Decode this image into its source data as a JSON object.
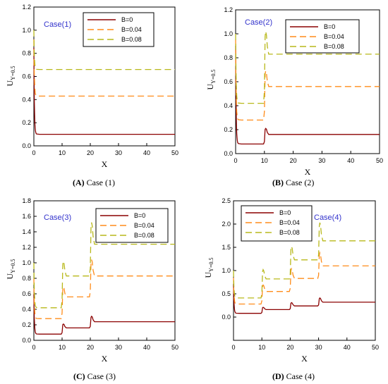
{
  "colors": {
    "B=0": "#8b0000",
    "B=0.04": "#ff8c1a",
    "B=0.08": "#b8b81a",
    "case_label": "#3333cc"
  },
  "panels": [
    {
      "caption_letter": "(A)",
      "caption_text": " Case (1)",
      "case_label": "Case(1)",
      "xlabel": "X",
      "ylabel_main": "U",
      "ylabel_sub": "Y=0.5",
      "legend": [
        "B=0",
        "B=0.04",
        "B=0.08"
      ]
    },
    {
      "caption_letter": "(B)",
      "caption_text": " Case (2)",
      "case_label": "Case(2)",
      "xlabel": "X",
      "ylabel_main": "U",
      "ylabel_sub": "Y=0.5",
      "legend": [
        "B=0",
        "B=0.04",
        "B=0.08"
      ]
    },
    {
      "caption_letter": "(C)",
      "caption_text": " Case (3)",
      "case_label": "Case(3)",
      "xlabel": "X",
      "ylabel_main": "U",
      "ylabel_sub": "Y=0.5",
      "legend": [
        "B=0",
        "B=0.04",
        "B=0.08"
      ]
    },
    {
      "caption_letter": "(D)",
      "caption_text": " Case (4)",
      "case_label": "Case(4)",
      "xlabel": "X",
      "ylabel_main": "U",
      "ylabel_sub": "Y=0.5",
      "legend": [
        "B=0",
        "B=0.04",
        "B=0.08"
      ]
    }
  ],
  "chart_data": [
    {
      "type": "line",
      "title": "Case(1)",
      "xlabel": "X",
      "ylabel": "UY=0.5",
      "xlim": [
        0,
        50
      ],
      "ylim": [
        0,
        1.2
      ],
      "xticks": [
        0,
        10,
        20,
        30,
        40,
        50
      ],
      "yticks": [
        0.0,
        0.2,
        0.4,
        0.6,
        0.8,
        1.0,
        1.2
      ],
      "legend_position": "top-right",
      "steps": [],
      "series": [
        {
          "name": "B=0",
          "start": 0.85,
          "levels": [
            0.1
          ],
          "peaks": []
        },
        {
          "name": "B=0.04",
          "start": 0.92,
          "levels": [
            0.43
          ],
          "peaks": []
        },
        {
          "name": "B=0.08",
          "start": 1.0,
          "levels": [
            0.66
          ],
          "peaks": []
        }
      ]
    },
    {
      "type": "line",
      "title": "Case(2)",
      "xlabel": "X",
      "ylabel": "UY=0.5",
      "xlim": [
        0,
        50
      ],
      "ylim": [
        0,
        1.2
      ],
      "xticks": [
        0,
        10,
        20,
        30,
        40,
        50
      ],
      "yticks": [
        0.0,
        0.2,
        0.4,
        0.6,
        0.8,
        1.0,
        1.2
      ],
      "legend_position": "top-right",
      "steps": [
        10
      ],
      "series": [
        {
          "name": "B=0",
          "start": 0.9,
          "levels": [
            0.08,
            0.16
          ],
          "peaks": [
            0.21
          ]
        },
        {
          "name": "B=0.04",
          "start": 0.95,
          "levels": [
            0.28,
            0.56
          ],
          "peaks": [
            0.69
          ]
        },
        {
          "name": "B=0.08",
          "start": 1.0,
          "levels": [
            0.42,
            0.83
          ],
          "peaks": [
            1.02
          ]
        }
      ]
    },
    {
      "type": "line",
      "title": "Case(3)",
      "xlabel": "X",
      "ylabel": "UY=0.5",
      "xlim": [
        0,
        50
      ],
      "ylim": [
        0,
        1.8
      ],
      "xticks": [
        0,
        10,
        20,
        30,
        40,
        50
      ],
      "yticks": [
        0.0,
        0.2,
        0.4,
        0.6,
        0.8,
        1.0,
        1.2,
        1.4,
        1.6,
        1.8
      ],
      "legend_position": "top-right",
      "steps": [
        10,
        20
      ],
      "series": [
        {
          "name": "B=0",
          "start": 0.6,
          "levels": [
            0.08,
            0.16,
            0.24
          ],
          "peaks": [
            0.21,
            0.31
          ]
        },
        {
          "name": "B=0.04",
          "start": 0.8,
          "levels": [
            0.28,
            0.56,
            0.83
          ],
          "peaks": [
            0.69,
            1.04
          ]
        },
        {
          "name": "B=0.08",
          "start": 1.0,
          "levels": [
            0.42,
            0.83,
            1.24
          ],
          "peaks": [
            1.02,
            1.52
          ]
        }
      ]
    },
    {
      "type": "line",
      "title": "Case(4)",
      "xlabel": "X",
      "ylabel": "UY=0.5",
      "xlim": [
        0,
        50
      ],
      "ylim": [
        -0.5,
        2.5
      ],
      "xticks": [
        0,
        10,
        20,
        30,
        40,
        50
      ],
      "yticks": [
        0.0,
        0.5,
        1.0,
        1.5,
        2.0,
        2.5
      ],
      "legend_position": "top-left",
      "steps": [
        10,
        20,
        30
      ],
      "series": [
        {
          "name": "B=0",
          "start": 0.7,
          "levels": [
            0.08,
            0.16,
            0.24,
            0.32
          ],
          "peaks": [
            0.21,
            0.31,
            0.41
          ]
        },
        {
          "name": "B=0.04",
          "start": 0.85,
          "levels": [
            0.28,
            0.55,
            0.83,
            1.1
          ],
          "peaks": [
            0.69,
            1.04,
            1.38
          ]
        },
        {
          "name": "B=0.08",
          "start": 1.0,
          "levels": [
            0.41,
            0.82,
            1.23,
            1.64
          ],
          "peaks": [
            1.02,
            1.52,
            2.03
          ]
        }
      ]
    }
  ]
}
